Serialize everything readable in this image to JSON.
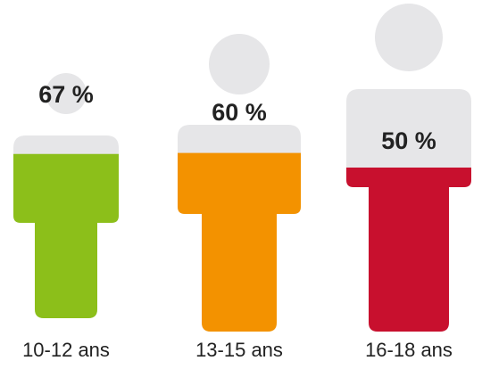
{
  "chart_data": {
    "type": "pictogram",
    "categories": [
      "10-12 ans",
      "13-15 ans",
      "16-18 ans"
    ],
    "values": [
      67,
      60,
      50
    ],
    "value_labels": [
      "67 %",
      "60 %",
      "50 %"
    ],
    "colors": [
      "#8cbf1a",
      "#f39200",
      "#c8102e"
    ],
    "ylim": [
      0,
      100
    ],
    "base_color": "#e6e6e8"
  }
}
